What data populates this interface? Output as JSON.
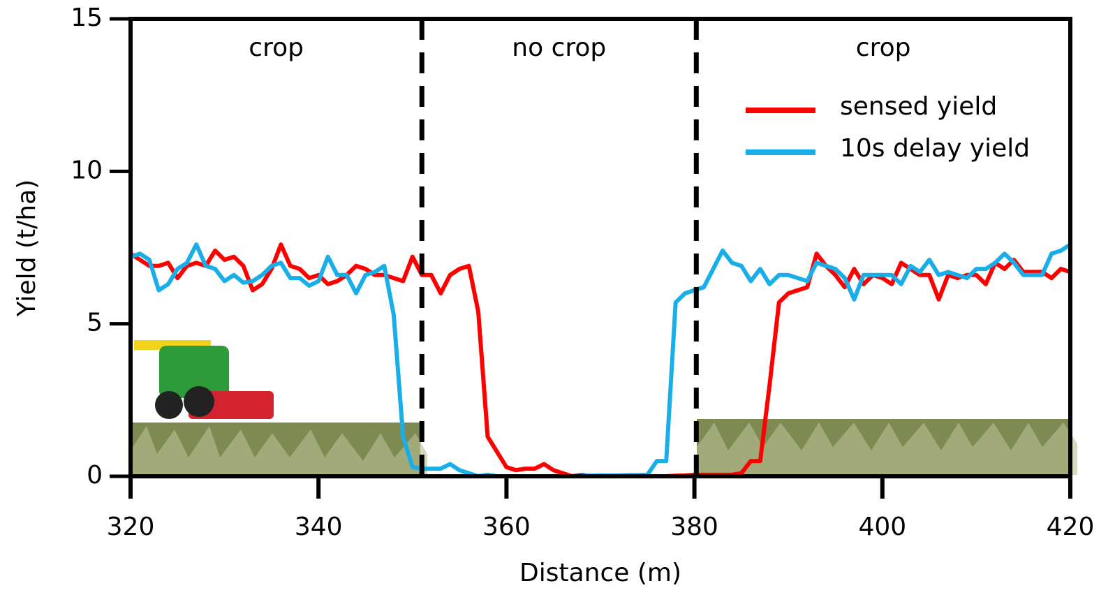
{
  "chart_data": {
    "type": "line",
    "xlabel": "Distance (m)",
    "ylabel": "Yield (t/ha)",
    "x": [
      320,
      321,
      322,
      323,
      324,
      325,
      326,
      327,
      328,
      329,
      330,
      331,
      332,
      333,
      334,
      335,
      336,
      337,
      338,
      339,
      340,
      341,
      342,
      343,
      344,
      345,
      346,
      347,
      348,
      349,
      350,
      351,
      352,
      353,
      354,
      355,
      356,
      357,
      358,
      359,
      360,
      361,
      362,
      363,
      364,
      365,
      366,
      367,
      368,
      369,
      370,
      371,
      372,
      373,
      374,
      375,
      376,
      377,
      378,
      379,
      380,
      381,
      382,
      383,
      384,
      385,
      386,
      387,
      388,
      389,
      390,
      391,
      392,
      393,
      394,
      395,
      396,
      397,
      398,
      399,
      400,
      401,
      402,
      403,
      404,
      405,
      406,
      407,
      408,
      409,
      410,
      411,
      412,
      413,
      414,
      415,
      416,
      417,
      418,
      419,
      420
    ],
    "series": [
      {
        "name": "sensed yield",
        "color": "#ff0000",
        "values": [
          7.3,
          7.1,
          6.9,
          6.9,
          7.0,
          6.5,
          6.9,
          7.0,
          6.9,
          7.4,
          7.1,
          7.2,
          6.9,
          6.1,
          6.3,
          6.8,
          7.6,
          6.9,
          6.8,
          6.5,
          6.6,
          6.3,
          6.4,
          6.6,
          6.9,
          6.8,
          6.6,
          6.6,
          6.5,
          6.4,
          7.2,
          6.6,
          6.6,
          6.0,
          6.6,
          6.8,
          6.9,
          5.4,
          1.3,
          0.8,
          0.3,
          0.2,
          0.25,
          0.25,
          0.4,
          0.2,
          0.1,
          0,
          0.05,
          0,
          0,
          0,
          0,
          0,
          0,
          0,
          0,
          0,
          0.02,
          0.03,
          0.05,
          0.05,
          0.05,
          0.05,
          0.05,
          0.1,
          0.5,
          0.5,
          3.0,
          5.7,
          6.0,
          6.1,
          6.2,
          7.3,
          6.9,
          6.6,
          6.2,
          6.8,
          6.3,
          6.6,
          6.5,
          6.3,
          7.0,
          6.8,
          6.6,
          6.6,
          5.8,
          6.6,
          6.5,
          6.6,
          6.6,
          6.3,
          7.0,
          6.8,
          7.1,
          6.7,
          6.7,
          6.7,
          6.5,
          6.8,
          6.7
        ]
      },
      {
        "name": "10s delay yield",
        "color": "#1aaee8",
        "values": [
          7.2,
          7.3,
          7.1,
          6.1,
          6.3,
          6.8,
          7.0,
          7.6,
          6.9,
          6.8,
          6.4,
          6.6,
          6.35,
          6.4,
          6.6,
          6.9,
          7.0,
          6.5,
          6.5,
          6.25,
          6.4,
          7.2,
          6.6,
          6.6,
          6.0,
          6.6,
          6.7,
          6.9,
          5.3,
          1.3,
          0.3,
          0.25,
          0.25,
          0.25,
          0.4,
          0.2,
          0.1,
          0,
          0.05,
          0,
          0,
          0,
          0,
          0,
          0,
          0,
          0,
          0,
          0.02,
          0.02,
          0.03,
          0.03,
          0.03,
          0.04,
          0.04,
          0.05,
          0.5,
          0.5,
          5.7,
          6.0,
          6.1,
          6.2,
          6.8,
          7.4,
          7.0,
          6.9,
          6.4,
          6.8,
          6.3,
          6.6,
          6.6,
          6.5,
          6.4,
          7.0,
          6.9,
          6.8,
          6.5,
          5.8,
          6.6,
          6.6,
          6.6,
          6.6,
          6.3,
          6.9,
          6.7,
          7.1,
          6.6,
          6.7,
          6.6,
          6.5,
          6.8,
          6.8,
          7.0,
          7.3,
          7.0,
          6.6,
          6.6,
          6.6,
          7.3,
          7.4,
          7.6
        ]
      }
    ],
    "xlim": [
      320,
      420
    ],
    "xticks": [
      320,
      340,
      360,
      380,
      400,
      420
    ],
    "ylim": [
      0,
      15
    ],
    "yticks": [
      0,
      5,
      10,
      15
    ],
    "boundaries": [
      351,
      380.2
    ],
    "annotations": [
      "crop",
      "no crop",
      "crop"
    ],
    "legend": "upper right"
  }
}
